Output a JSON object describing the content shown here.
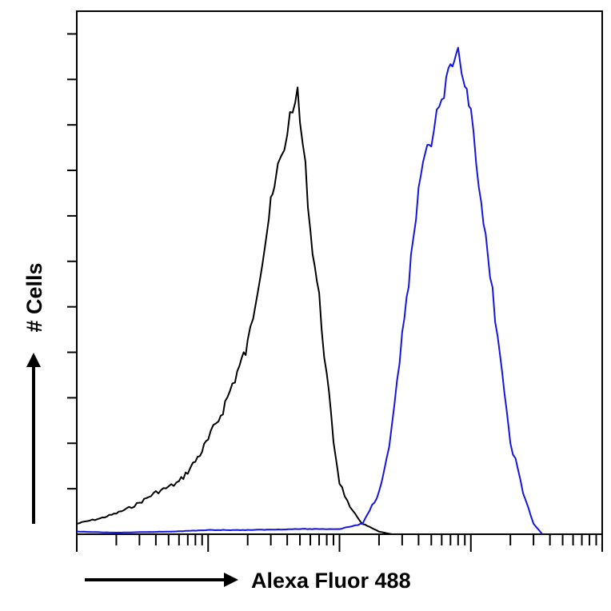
{
  "chart_data": {
    "type": "line",
    "title": "",
    "xlabel": "Alexa Fluor 488",
    "ylabel": "# Cells",
    "x_scale": "log",
    "xlim": [
      1,
      10000
    ],
    "ylim": [
      0,
      100
    ],
    "grid": false,
    "legend": "none",
    "series": [
      {
        "color": "#000000",
        "x": [
          1,
          1.2,
          1.5,
          2,
          2.5,
          3,
          4,
          5,
          6,
          7,
          8,
          9,
          10,
          12,
          14,
          16,
          18,
          20,
          22,
          24,
          26,
          28,
          30,
          32,
          34,
          36,
          38,
          40,
          42,
          44,
          46,
          48,
          50,
          55,
          60,
          70,
          80,
          90,
          100,
          120,
          150,
          200,
          250
        ],
        "y": [
          2,
          2.5,
          3,
          4,
          5,
          6,
          8,
          9,
          10,
          12,
          14,
          16,
          18,
          22,
          26,
          30,
          33,
          36,
          42,
          48,
          53,
          58,
          63,
          66,
          70,
          72,
          74,
          77,
          80,
          82,
          81,
          85,
          79,
          70,
          58,
          45,
          30,
          18,
          10,
          5,
          2,
          0.5,
          0
        ]
      },
      {
        "color": "#1515e0",
        "x": [
          1,
          2,
          5,
          10,
          20,
          50,
          100,
          150,
          200,
          250,
          300,
          350,
          400,
          450,
          500,
          550,
          600,
          650,
          700,
          750,
          800,
          850,
          900,
          1000,
          1100,
          1200,
          1400,
          1600,
          1800,
          2000,
          2500,
          3000,
          3500
        ],
        "y": [
          0.5,
          0.3,
          0.5,
          0.8,
          0.8,
          1,
          1,
          2,
          8,
          20,
          38,
          52,
          65,
          72,
          75,
          80,
          82,
          86,
          90,
          89,
          92,
          87,
          86,
          82,
          72,
          62,
          50,
          38,
          26,
          18,
          8,
          2,
          0
        ]
      }
    ]
  }
}
